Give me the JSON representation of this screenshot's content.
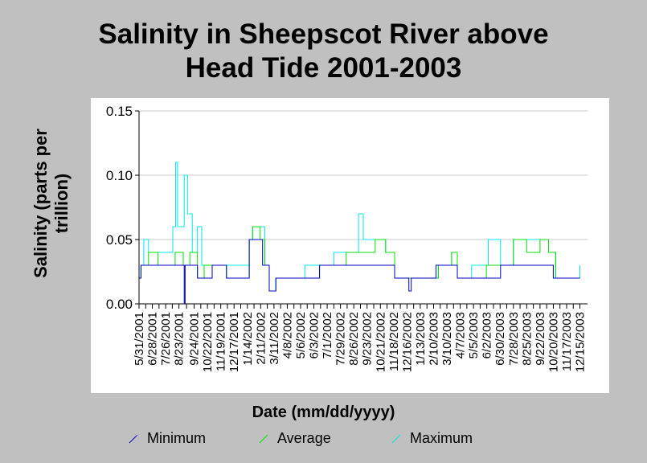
{
  "title_lines": [
    "Salinity in Sheepscot River above",
    "Head Tide 2001-2003"
  ],
  "colors": {
    "minimum": "#0000c0",
    "average": "#00e000",
    "maximum": "#00e8e8",
    "background": "#c0c0c0",
    "gridline": "#c8c8c8"
  },
  "chart_data": {
    "type": "line",
    "title": "Salinity in Sheepscot River above Head Tide 2001-2003",
    "xlabel": "Date (mm/dd/yyyy)",
    "ylabel_lines": [
      "Salinity (parts per",
      "trillion)"
    ],
    "ylim": [
      0,
      0.15
    ],
    "y_ticks": [
      "0.00",
      "0.05",
      "0.10",
      "0.15"
    ],
    "y_tick_values": [
      0,
      0.05,
      0.1,
      0.15
    ],
    "x_range": [
      "5/31/2001",
      "12/31/2003"
    ],
    "x_ticks": [
      "5/31/2001",
      "6/28/2001",
      "7/26/2001",
      "8/23/2001",
      "9/24/2001",
      "10/22/2001",
      "11/19/2001",
      "12/17/2001",
      "1/14/2002",
      "2/11/2002",
      "3/11/2002",
      "4/8/2002",
      "5/6/2002",
      "6/3/2002",
      "7/1/2002",
      "7/29/2002",
      "8/26/2002",
      "9/23/2002",
      "10/21/2002",
      "11/18/2002",
      "12/16/2002",
      "1/13/2003",
      "2/10/2003",
      "3/10/2003",
      "4/7/2003",
      "5/5/2003",
      "6/2/2003",
      "6/30/2003",
      "7/28/2003",
      "8/25/2003",
      "9/22/2003",
      "10/20/2003",
      "11/17/2003",
      "12/15/2003"
    ],
    "grid": true,
    "legend_position": "bottom",
    "series": [
      {
        "name": "Minimum",
        "color": "#0000c0",
        "points": [
          [
            "5/31/2001",
            0.02
          ],
          [
            "6/4/2001",
            0.03
          ],
          [
            "7/1/2001",
            0.03
          ],
          [
            "8/15/2001",
            0.03
          ],
          [
            "8/30/2001",
            0.03
          ],
          [
            "9/3/2001",
            0.0
          ],
          [
            "9/5/2001",
            0.03
          ],
          [
            "10/1/2001",
            0.02
          ],
          [
            "10/10/2001",
            0.02
          ],
          [
            "11/1/2001",
            0.03
          ],
          [
            "12/1/2001",
            0.02
          ],
          [
            "1/10/2002",
            0.02
          ],
          [
            "1/18/2002",
            0.05
          ],
          [
            "2/5/2002",
            0.05
          ],
          [
            "2/15/2002",
            0.03
          ],
          [
            "3/1/2002",
            0.01
          ],
          [
            "3/15/2002",
            0.02
          ],
          [
            "5/15/2002",
            0.02
          ],
          [
            "6/15/2002",
            0.03
          ],
          [
            "7/15/2002",
            0.03
          ],
          [
            "8/15/2002",
            0.03
          ],
          [
            "9/10/2002",
            0.03
          ],
          [
            "10/1/2002",
            0.03
          ],
          [
            "11/1/2002",
            0.03
          ],
          [
            "11/20/2002",
            0.02
          ],
          [
            "12/20/2002",
            0.01
          ],
          [
            "12/25/2002",
            0.02
          ],
          [
            "1/20/2003",
            0.02
          ],
          [
            "2/15/2003",
            0.03
          ],
          [
            "3/20/2003",
            0.03
          ],
          [
            "4/1/2003",
            0.02
          ],
          [
            "5/1/2003",
            0.02
          ],
          [
            "6/1/2003",
            0.02
          ],
          [
            "7/1/2003",
            0.03
          ],
          [
            "8/1/2003",
            0.03
          ],
          [
            "9/1/2003",
            0.03
          ],
          [
            "10/1/2003",
            0.03
          ],
          [
            "10/20/2003",
            0.02
          ],
          [
            "12/15/2003",
            0.02
          ]
        ]
      },
      {
        "name": "Average",
        "color": "#00e000",
        "points": [
          [
            "5/31/2001",
            0.02
          ],
          [
            "6/4/2001",
            0.03
          ],
          [
            "6/20/2001",
            0.04
          ],
          [
            "7/10/2001",
            0.03
          ],
          [
            "8/15/2001",
            0.04
          ],
          [
            "9/1/2001",
            0.03
          ],
          [
            "9/15/2001",
            0.04
          ],
          [
            "10/1/2001",
            0.02
          ],
          [
            "10/15/2001",
            0.03
          ],
          [
            "11/1/2001",
            0.03
          ],
          [
            "12/1/2001",
            0.02
          ],
          [
            "1/5/2002",
            0.02
          ],
          [
            "1/18/2002",
            0.05
          ],
          [
            "1/25/2002",
            0.06
          ],
          [
            "2/10/2002",
            0.05
          ],
          [
            "2/20/2002",
            0.03
          ],
          [
            "3/1/2002",
            0.01
          ],
          [
            "3/15/2002",
            0.02
          ],
          [
            "5/15/2002",
            0.02
          ],
          [
            "6/15/2002",
            0.03
          ],
          [
            "7/15/2002",
            0.03
          ],
          [
            "8/10/2002",
            0.04
          ],
          [
            "9/15/2002",
            0.04
          ],
          [
            "10/10/2002",
            0.05
          ],
          [
            "11/1/2002",
            0.04
          ],
          [
            "11/20/2002",
            0.02
          ],
          [
            "1/20/2003",
            0.02
          ],
          [
            "2/20/2003",
            0.03
          ],
          [
            "3/20/2003",
            0.04
          ],
          [
            "4/1/2003",
            0.02
          ],
          [
            "5/1/2003",
            0.02
          ],
          [
            "6/1/2003",
            0.03
          ],
          [
            "7/1/2003",
            0.03
          ],
          [
            "7/28/2003",
            0.05
          ],
          [
            "8/25/2003",
            0.04
          ],
          [
            "9/22/2003",
            0.05
          ],
          [
            "10/10/2003",
            0.04
          ],
          [
            "10/25/2003",
            0.02
          ],
          [
            "12/15/2003",
            0.02
          ]
        ]
      },
      {
        "name": "Maximum",
        "color": "#00e8e8",
        "points": [
          [
            "5/31/2001",
            0.02
          ],
          [
            "6/4/2001",
            0.03
          ],
          [
            "6/10/2001",
            0.05
          ],
          [
            "6/20/2001",
            0.04
          ],
          [
            "7/10/2001",
            0.04
          ],
          [
            "8/1/2001",
            0.04
          ],
          [
            "8/10/2001",
            0.06
          ],
          [
            "8/16/2001",
            0.11
          ],
          [
            "8/20/2001",
            0.06
          ],
          [
            "8/30/2001",
            0.06
          ],
          [
            "9/3/2001",
            0.1
          ],
          [
            "9/10/2001",
            0.07
          ],
          [
            "9/20/2001",
            0.04
          ],
          [
            "10/1/2001",
            0.06
          ],
          [
            "10/10/2001",
            0.03
          ],
          [
            "11/1/2001",
            0.03
          ],
          [
            "12/1/2001",
            0.03
          ],
          [
            "1/10/2002",
            0.03
          ],
          [
            "1/18/2002",
            0.05
          ],
          [
            "1/25/2002",
            0.06
          ],
          [
            "2/10/2002",
            0.06
          ],
          [
            "2/20/2002",
            0.03
          ],
          [
            "3/1/2002",
            0.01
          ],
          [
            "3/15/2002",
            0.02
          ],
          [
            "5/15/2002",
            0.03
          ],
          [
            "6/15/2002",
            0.03
          ],
          [
            "7/15/2002",
            0.04
          ],
          [
            "8/10/2002",
            0.04
          ],
          [
            "9/5/2002",
            0.07
          ],
          [
            "9/15/2002",
            0.05
          ],
          [
            "10/10/2002",
            0.05
          ],
          [
            "11/1/2002",
            0.04
          ],
          [
            "11/20/2002",
            0.02
          ],
          [
            "1/20/2003",
            0.02
          ],
          [
            "2/20/2003",
            0.03
          ],
          [
            "3/20/2003",
            0.04
          ],
          [
            "4/1/2003",
            0.02
          ],
          [
            "5/1/2003",
            0.03
          ],
          [
            "6/1/2003",
            0.03
          ],
          [
            "6/5/2003",
            0.05
          ],
          [
            "7/1/2003",
            0.03
          ],
          [
            "7/28/2003",
            0.05
          ],
          [
            "8/25/2003",
            0.05
          ],
          [
            "9/22/2003",
            0.05
          ],
          [
            "10/10/2003",
            0.04
          ],
          [
            "10/25/2003",
            0.02
          ],
          [
            "12/15/2003",
            0.03
          ]
        ]
      }
    ]
  }
}
